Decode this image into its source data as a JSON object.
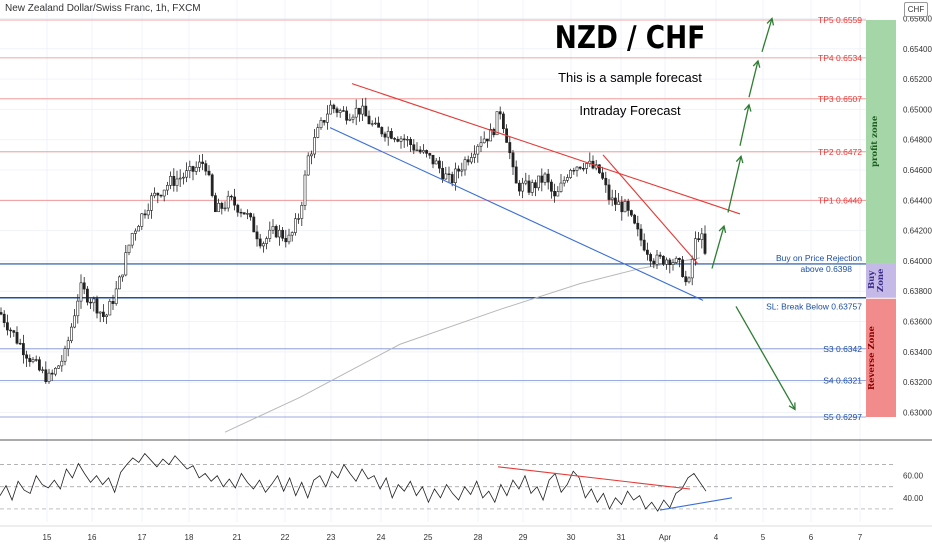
{
  "header": {
    "symbol_title": "New Zealand Dollar/Swiss Franc, 1h, FXCM",
    "currency_badge": "CHF"
  },
  "annotations": {
    "title": "NZD / CHF",
    "subtitle1": "This is a sample forecast",
    "subtitle2": "Intraday Forecast"
  },
  "zones": {
    "profit_zone": "profit zone",
    "buy_zone": "Buy Zone",
    "reverse_zone": "Reverse Zone"
  },
  "colors": {
    "profit_zone": "#a5d6a7",
    "buy_zone": "#c5b9e8",
    "reverse_zone": "#f28b8b",
    "tp_line": "#f08a8a",
    "s_line": "#7b8fd8",
    "support_line": "#1e4fa0",
    "trend_red": "#e53935",
    "trend_blue": "#3a6fd8",
    "arrow_green": "#2e7d32",
    "candle": "#222222"
  },
  "chart_data": [
    {
      "type": "candlestick",
      "title": "New Zealand Dollar/Swiss Franc, 1h, FXCM",
      "x_tick_labels": [
        "15",
        "16",
        "17",
        "18",
        "21",
        "22",
        "23",
        "24",
        "25",
        "28",
        "29",
        "30",
        "31",
        "Apr",
        "4",
        "5",
        "6",
        "7"
      ],
      "y_tick_labels": [
        "0.65600",
        "0.65400",
        "0.65200",
        "0.65000",
        "0.64800",
        "0.64600",
        "0.64400",
        "0.64200",
        "0.64000",
        "0.63800",
        "0.63600",
        "0.63400",
        "0.63200",
        "0.63000"
      ],
      "ylim": [
        0.6294,
        0.6568
      ],
      "levels": [
        {
          "label": "TP5 0.6559",
          "value": 0.6559,
          "kind": "tp"
        },
        {
          "label": "TP4 0.6534",
          "value": 0.6534,
          "kind": "tp"
        },
        {
          "label": "TP3 0.6507",
          "value": 0.6507,
          "kind": "tp"
        },
        {
          "label": "TP2 0.6472",
          "value": 0.6472,
          "kind": "tp"
        },
        {
          "label": "TP1 0.6440",
          "value": 0.644,
          "kind": "tp"
        },
        {
          "label": "Buy on Price Rejection",
          "label2": "above 0.6398",
          "value": 0.6398,
          "kind": "buy"
        },
        {
          "label": "SL: Break Below 0.63757",
          "value": 0.63757,
          "kind": "sl"
        },
        {
          "label": "S3 0.6342",
          "value": 0.6342,
          "kind": "s"
        },
        {
          "label": "S4 0.6321",
          "value": 0.6321,
          "kind": "s"
        },
        {
          "label": "S5 0.6297",
          "value": 0.6297,
          "kind": "s"
        }
      ],
      "close_path": [
        [
          0,
          0.6366
        ],
        [
          18,
          0.6347
        ],
        [
          40,
          0.6327
        ],
        [
          50,
          0.6322
        ],
        [
          65,
          0.6338
        ],
        [
          80,
          0.6382
        ],
        [
          95,
          0.6372
        ],
        [
          105,
          0.6362
        ],
        [
          118,
          0.6383
        ],
        [
          132,
          0.6418
        ],
        [
          150,
          0.644
        ],
        [
          170,
          0.6452
        ],
        [
          190,
          0.6458
        ],
        [
          205,
          0.6466
        ],
        [
          215,
          0.6432
        ],
        [
          230,
          0.644
        ],
        [
          245,
          0.6432
        ],
        [
          262,
          0.6412
        ],
        [
          275,
          0.642
        ],
        [
          290,
          0.6414
        ],
        [
          300,
          0.6432
        ],
        [
          308,
          0.6468
        ],
        [
          318,
          0.6485
        ],
        [
          330,
          0.6502
        ],
        [
          345,
          0.6497
        ],
        [
          360,
          0.65
        ],
        [
          375,
          0.6487
        ],
        [
          390,
          0.6485
        ],
        [
          405,
          0.648
        ],
        [
          420,
          0.6472
        ],
        [
          435,
          0.6465
        ],
        [
          450,
          0.6452
        ],
        [
          465,
          0.6466
        ],
        [
          480,
          0.648
        ],
        [
          492,
          0.6484
        ],
        [
          500,
          0.65
        ],
        [
          508,
          0.6478
        ],
        [
          515,
          0.645
        ],
        [
          530,
          0.6448
        ],
        [
          545,
          0.6455
        ],
        [
          555,
          0.644
        ],
        [
          570,
          0.6462
        ],
        [
          585,
          0.6465
        ],
        [
          600,
          0.6458
        ],
        [
          610,
          0.644
        ],
        [
          625,
          0.6435
        ],
        [
          640,
          0.6415
        ],
        [
          655,
          0.64
        ],
        [
          670,
          0.6402
        ],
        [
          682,
          0.6395
        ],
        [
          688,
          0.638
        ],
        [
          694,
          0.641
        ],
        [
          700,
          0.642
        ],
        [
          706,
          0.64
        ]
      ],
      "ma_path": [
        [
          225,
          0.6287
        ],
        [
          300,
          0.631
        ],
        [
          400,
          0.6345
        ],
        [
          500,
          0.6368
        ],
        [
          580,
          0.6385
        ],
        [
          640,
          0.6395
        ],
        [
          700,
          0.6402
        ]
      ],
      "trendlines": [
        {
          "color": "red",
          "from": [
            352,
            0.6517
          ],
          "to": [
            740,
            0.6431
          ]
        },
        {
          "color": "red",
          "from": [
            603,
            0.647
          ],
          "to": [
            698,
            0.6398
          ]
        },
        {
          "color": "blue",
          "from": [
            330,
            0.6488
          ],
          "to": [
            703,
            0.6374
          ]
        }
      ],
      "forecast_arrows": [
        {
          "direction": "up",
          "from": [
            712,
            0.6395
          ],
          "to": [
            724,
            0.6423
          ]
        },
        {
          "direction": "up",
          "from": [
            728,
            0.6432
          ],
          "to": [
            741,
            0.6469
          ]
        },
        {
          "direction": "up",
          "from": [
            740,
            0.6476
          ],
          "to": [
            749,
            0.6503
          ]
        },
        {
          "direction": "up",
          "from": [
            749,
            0.6508
          ],
          "to": [
            758,
            0.6532
          ]
        },
        {
          "direction": "up",
          "from": [
            762,
            0.6538
          ],
          "to": [
            772,
            0.656
          ]
        },
        {
          "direction": "down",
          "from": [
            736,
            0.637
          ],
          "to": [
            795,
            0.6302
          ]
        }
      ]
    },
    {
      "type": "line",
      "title": "",
      "y_tick_labels": [
        "60.00",
        "40.00"
      ],
      "ylim": [
        20,
        85
      ],
      "series": [
        {
          "values": [
            42,
            51,
            38,
            55,
            47,
            44,
            60,
            52,
            49,
            56,
            48,
            66,
            58,
            71,
            62,
            54,
            60,
            52,
            58,
            45,
            63,
            70,
            76,
            72,
            80,
            74,
            68,
            75,
            70,
            78,
            72,
            66,
            69,
            58,
            62,
            55,
            60,
            50,
            57,
            49,
            62,
            54,
            48,
            56,
            45,
            52,
            60,
            46,
            58,
            42,
            54,
            40,
            56,
            60,
            50,
            64,
            58,
            70,
            62,
            55,
            66,
            57,
            60,
            48,
            58,
            40,
            52,
            46,
            55,
            42,
            50,
            36,
            48,
            40,
            52,
            44,
            38,
            50,
            43,
            55,
            40,
            46,
            36,
            52,
            42,
            56,
            48,
            60,
            44,
            50,
            38,
            56,
            62,
            45,
            52,
            64,
            58,
            40,
            48,
            36,
            44,
            30,
            40,
            34,
            46,
            38,
            42,
            30,
            36,
            28,
            38,
            31,
            44,
            48,
            58,
            62,
            54,
            46
          ]
        }
      ],
      "trendlines": [
        {
          "color": "red",
          "from": [
            498,
            68
          ],
          "to": [
            690,
            48
          ]
        },
        {
          "color": "blue",
          "from": [
            660,
            29
          ],
          "to": [
            732,
            40
          ]
        }
      ]
    }
  ]
}
